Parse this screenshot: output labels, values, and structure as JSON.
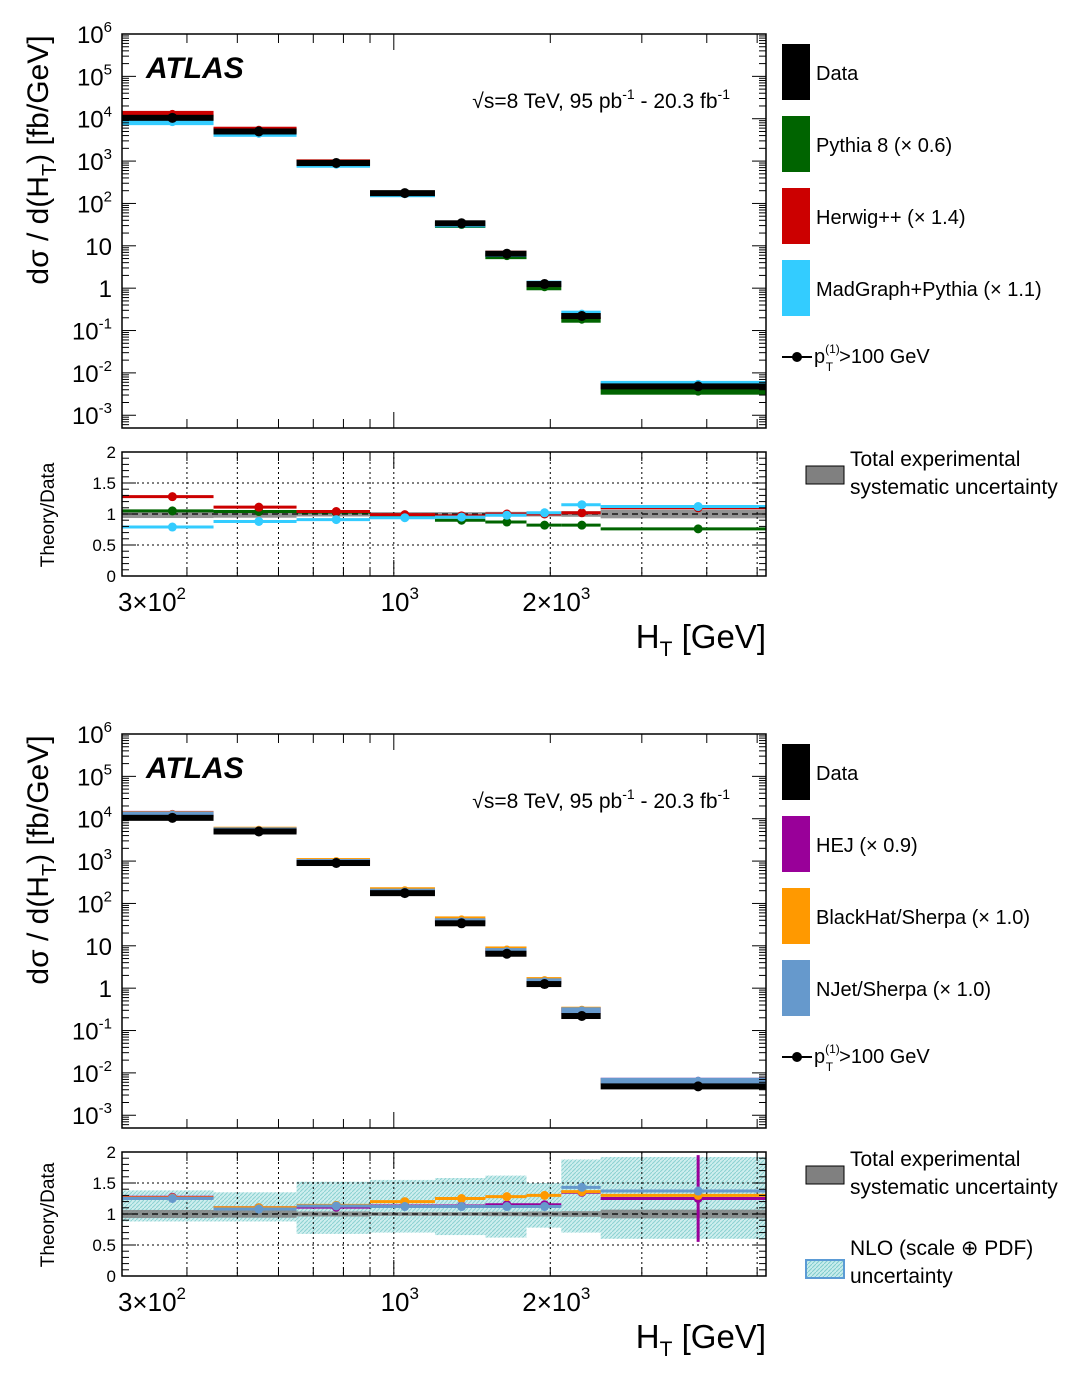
{
  "chart_data": [
    {
      "type": "line",
      "xlabel_main": "H",
      "xlabel_sub": "T",
      "xlabel_unit": " [GeV]",
      "ylabel": "dσ / d(H",
      "ylabel_sub": "T",
      "ylabel_unit": ") [fb/GeV]",
      "ratio_ylabel": "Theory/Data",
      "xlog": true,
      "ylog": true,
      "xlim": [
        300,
        5200
      ],
      "ylim": [
        0.0005,
        1000000
      ],
      "ratio_ylim": [
        0,
        2
      ],
      "ratio_yticks": [
        "0",
        "0.5",
        "1",
        "1.5",
        "2"
      ],
      "atlas_label": "ATLAS",
      "energy_label": "√s=8 TeV, 95 pb",
      "energy_sup1": "-1",
      "energy_mid": " - 20.3 fb",
      "energy_sup2": "-1",
      "xtick_labels": [
        {
          "x": 300,
          "base": "3×10",
          "exp": "2"
        },
        {
          "x": 1000,
          "base": "10",
          "exp": "3"
        },
        {
          "x": 2000,
          "base": "2×10",
          "exp": "3"
        }
      ],
      "ytick_labels": [
        {
          "y": 1000000,
          "base": "10",
          "exp": "6"
        },
        {
          "y": 100000,
          "base": "10",
          "exp": "5"
        },
        {
          "y": 10000,
          "base": "10",
          "exp": "4"
        },
        {
          "y": 1000,
          "base": "10",
          "exp": "3"
        },
        {
          "y": 100,
          "base": "10",
          "exp": "2"
        },
        {
          "y": 10,
          "base": "10",
          "exp": ""
        },
        {
          "y": 1,
          "base": "1",
          "exp": ""
        },
        {
          "y": 0.1,
          "base": "10",
          "exp": "-1"
        },
        {
          "y": 0.01,
          "base": "10",
          "exp": "-2"
        },
        {
          "y": 0.001,
          "base": "10",
          "exp": "-3"
        }
      ],
      "bins": [
        [
          300,
          450
        ],
        [
          450,
          650
        ],
        [
          650,
          900
        ],
        [
          900,
          1200
        ],
        [
          1200,
          1500
        ],
        [
          1500,
          1800
        ],
        [
          1800,
          2100
        ],
        [
          2100,
          2500
        ],
        [
          2500,
          5200
        ]
      ],
      "data": {
        "name": "Data",
        "color": "#000000",
        "x": [
          375,
          550,
          775,
          1050,
          1350,
          1650,
          1950,
          2300,
          3850
        ],
        "y": [
          10500,
          5000,
          900,
          175,
          34,
          6.5,
          1.25,
          0.22,
          0.0048
        ]
      },
      "series": [
        {
          "name": "Pythia 8 (× 0.6)",
          "color": "#006400",
          "y": [
            11000,
            5200,
            930,
            172,
            31,
            5.7,
            1.05,
            0.18,
            0.0036
          ],
          "ratio": [
            1.05,
            1.04,
            1.03,
            0.98,
            0.9,
            0.87,
            0.82,
            0.82,
            0.76
          ]
        },
        {
          "name": "Herwig++ (× 1.4)",
          "color": "#cc0000",
          "y": [
            13000,
            5500,
            930,
            172,
            33,
            6.5,
            1.25,
            0.22,
            0.005
          ],
          "ratio": [
            1.28,
            1.11,
            1.04,
            0.99,
            0.97,
            1.0,
            1.0,
            1.02,
            1.1
          ]
        },
        {
          "name": "MadGraph+Pythia (× 1.1)",
          "color": "#33ccff",
          "y": [
            8300,
            4400,
            820,
            165,
            32,
            6.4,
            1.28,
            0.25,
            0.0055
          ],
          "ratio": [
            0.79,
            0.88,
            0.91,
            0.94,
            0.95,
            0.98,
            1.02,
            1.15,
            1.12
          ]
        }
      ],
      "syst_band": [
        0.13,
        0.12,
        0.08,
        0.06,
        0.06,
        0.07,
        0.08,
        0.09,
        0.14
      ],
      "legend": {
        "data_label": "Data",
        "cut_label_pre": "p",
        "cut_label_sup": "(1)",
        "cut_label_sub": "T",
        "cut_label_post": ">100 GeV",
        "syst_line1": "Total experimental",
        "syst_line2": "systematic uncertainty",
        "syst_color": "#808080"
      }
    },
    {
      "type": "line",
      "xlabel_main": "H",
      "xlabel_sub": "T",
      "xlabel_unit": " [GeV]",
      "ylabel": "dσ / d(H",
      "ylabel_sub": "T",
      "ylabel_unit": ") [fb/GeV]",
      "ratio_ylabel": "Theory/Data",
      "xlog": true,
      "ylog": true,
      "xlim": [
        300,
        5200
      ],
      "ylim": [
        0.0005,
        1000000
      ],
      "ratio_ylim": [
        0,
        2
      ],
      "ratio_yticks": [
        "0",
        "0.5",
        "1",
        "1.5",
        "2"
      ],
      "atlas_label": "ATLAS",
      "energy_label": "√s=8 TeV, 95 pb",
      "energy_sup1": "-1",
      "energy_mid": " - 20.3 fb",
      "energy_sup2": "-1",
      "xtick_labels": [
        {
          "x": 300,
          "base": "3×10",
          "exp": "2"
        },
        {
          "x": 1000,
          "base": "10",
          "exp": "3"
        },
        {
          "x": 2000,
          "base": "2×10",
          "exp": "3"
        }
      ],
      "ytick_labels": [
        {
          "y": 1000000,
          "base": "10",
          "exp": "6"
        },
        {
          "y": 100000,
          "base": "10",
          "exp": "5"
        },
        {
          "y": 10000,
          "base": "10",
          "exp": "4"
        },
        {
          "y": 1000,
          "base": "10",
          "exp": "3"
        },
        {
          "y": 100,
          "base": "10",
          "exp": "2"
        },
        {
          "y": 10,
          "base": "10",
          "exp": ""
        },
        {
          "y": 1,
          "base": "1",
          "exp": ""
        },
        {
          "y": 0.1,
          "base": "10",
          "exp": "-1"
        },
        {
          "y": 0.01,
          "base": "10",
          "exp": "-2"
        },
        {
          "y": 0.001,
          "base": "10",
          "exp": "-3"
        }
      ],
      "bins": [
        [
          300,
          450
        ],
        [
          450,
          650
        ],
        [
          650,
          900
        ],
        [
          900,
          1200
        ],
        [
          1200,
          1500
        ],
        [
          1500,
          1800
        ],
        [
          1800,
          2100
        ],
        [
          2100,
          2500
        ],
        [
          2500,
          5200
        ]
      ],
      "data": {
        "name": "Data",
        "color": "#000000",
        "x": [
          375,
          550,
          775,
          1050,
          1350,
          1650,
          1950,
          2300,
          3850
        ],
        "y": [
          10500,
          5000,
          900,
          175,
          34,
          6.5,
          1.25,
          0.22,
          0.0048
        ]
      },
      "series": [
        {
          "name": "HEJ (× 0.9)",
          "color": "#990099",
          "y": [
            13000,
            5400,
            980,
            190,
            38,
            7.5,
            1.45,
            0.3,
            0.0065
          ],
          "ratio": [
            1.27,
            1.1,
            1.11,
            1.13,
            1.13,
            1.15,
            1.15,
            1.35,
            1.25
          ],
          "last_err": [
            0.55,
            1.95
          ]
        },
        {
          "name": "BlackHat/Sherpa (× 1.0)",
          "color": "#ff9900",
          "y": [
            12800,
            5500,
            1000,
            205,
            42,
            8.2,
            1.55,
            0.31,
            0.0062
          ],
          "ratio": [
            1.26,
            1.1,
            1.14,
            1.2,
            1.25,
            1.28,
            1.3,
            1.36,
            1.3
          ]
        },
        {
          "name": "NJet/Sherpa (× 1.0)",
          "color": "#6699cc",
          "y": [
            12500,
            5300,
            950,
            190,
            38,
            7.5,
            1.45,
            0.3,
            0.0065
          ],
          "ratio": [
            1.25,
            1.08,
            1.13,
            1.12,
            1.12,
            1.12,
            1.12,
            1.43,
            1.37
          ]
        }
      ],
      "syst_band": [
        0.13,
        0.12,
        0.08,
        0.06,
        0.06,
        0.07,
        0.08,
        0.09,
        0.14
      ],
      "nlo_band": [
        [
          0.88,
          1.38
        ],
        [
          0.88,
          1.35
        ],
        [
          0.68,
          1.52
        ],
        [
          0.7,
          1.55
        ],
        [
          0.66,
          1.58
        ],
        [
          0.62,
          1.62
        ],
        [
          0.78,
          1.5
        ],
        [
          0.7,
          1.88
        ],
        [
          0.6,
          1.92
        ]
      ],
      "legend": {
        "data_label": "Data",
        "cut_label_pre": "p",
        "cut_label_sup": "(1)",
        "cut_label_sub": "T",
        "cut_label_post": ">100 GeV",
        "syst_line1": "Total experimental",
        "syst_line2": "systematic uncertainty",
        "syst_color": "#808080",
        "nlo_line1": "NLO (scale ⊕ PDF)",
        "nlo_line2": "uncertainty",
        "nlo_color": "#7fcccc"
      }
    }
  ]
}
